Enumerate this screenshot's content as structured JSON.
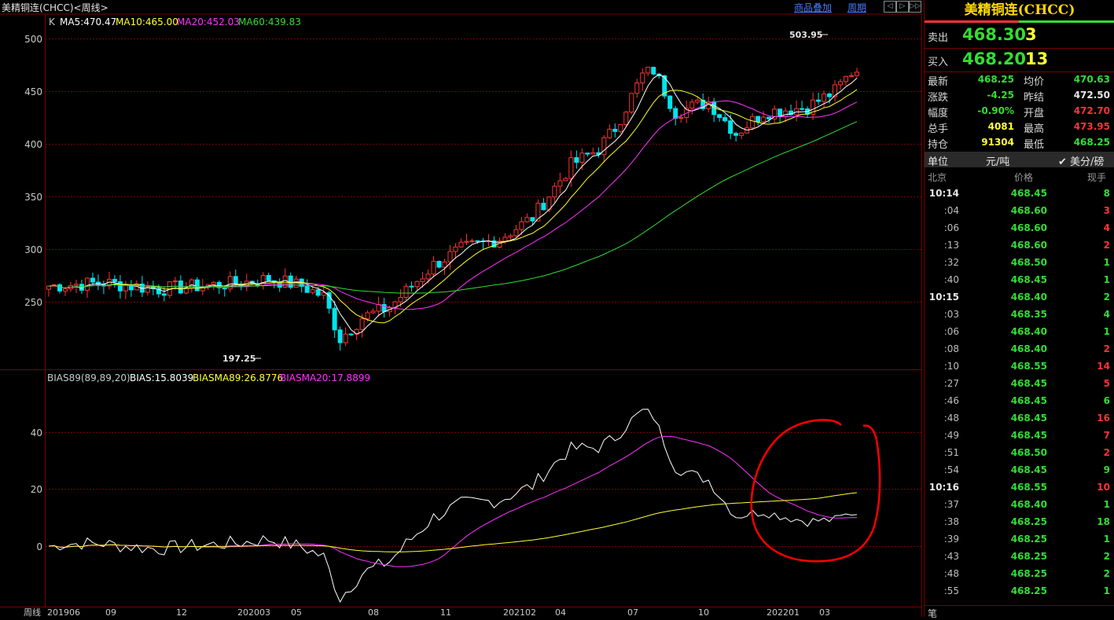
{
  "header": {
    "title": "美精铜连(CHCC)<周线>",
    "link_overlay": "商品叠加",
    "link_period": "周期",
    "nav_buttons": [
      "◁",
      "▷",
      "▷▷"
    ]
  },
  "main_chart": {
    "indicator_prefix": "K",
    "ma": [
      {
        "label": "MA5:470.47",
        "color": "#ffffff"
      },
      {
        "label": "MA10:465.00",
        "color": "#ffff33"
      },
      {
        "label": "MA20:452.03",
        "color": "#ff33ff"
      },
      {
        "label": "MA60:439.83",
        "color": "#33dd33"
      }
    ],
    "y_ticks": [
      "500",
      "450",
      "400",
      "350",
      "300",
      "250"
    ],
    "high_marker": "503.95",
    "low_marker": "197.25"
  },
  "sub_chart": {
    "indicator_name": "BIAS89(89,89,20)",
    "bias": {
      "label": "BIAS:15.8039",
      "color": "#ffffff"
    },
    "biasma89": {
      "label": "BIASMA89:26.8776",
      "color": "#ffff33"
    },
    "biasma20": {
      "label": "BIASMA20:17.8899",
      "color": "#ff33ff"
    },
    "y_ticks": [
      "40",
      "20",
      "0"
    ]
  },
  "x_axis": {
    "label": "周线",
    "ticks": [
      "201906",
      "09",
      "12",
      "202003",
      "05",
      "08",
      "11",
      "202102",
      "04",
      "07",
      "10",
      "202201",
      "03"
    ]
  },
  "colors": {
    "up": "#ff3333",
    "down": "#00e5ee",
    "grid": "#7a0000",
    "annotation": "#ff0000"
  },
  "chart_data": [
    {
      "type": "candlestick",
      "title": "美精铜连(CHCC)<周线>",
      "ylim": [
        197.25,
        503.95
      ],
      "series": [
        {
          "name": "MA5",
          "values": [
            470.47
          ]
        },
        {
          "name": "MA10",
          "values": [
            465.0
          ]
        },
        {
          "name": "MA20",
          "values": [
            452.03
          ]
        },
        {
          "name": "MA60",
          "values": [
            439.83
          ]
        }
      ],
      "annotations": [
        "503.95",
        "197.25"
      ]
    },
    {
      "type": "line",
      "title": "BIAS89(89,89,20)",
      "series": [
        {
          "name": "BIAS",
          "values": [
            15.8039
          ]
        },
        {
          "name": "BIASMA89",
          "values": [
            26.8776
          ]
        },
        {
          "name": "BIASMA20",
          "values": [
            17.8899
          ]
        }
      ]
    }
  ],
  "quote_panel": {
    "title": "美精铜连(CHCC)",
    "sell": {
      "label": "卖出",
      "price": "468.30",
      "volume": "3"
    },
    "buy": {
      "label": "买入",
      "price": "468.20",
      "volume": "13"
    },
    "stats": [
      {
        "l1": "最新",
        "v1": "468.25",
        "c1": "#33dd33",
        "l2": "均价",
        "v2": "470.63",
        "c2": "#33dd33"
      },
      {
        "l1": "涨跌",
        "v1": "-4.25",
        "c1": "#33dd33",
        "l2": "昨结",
        "v2": "472.50",
        "c2": "#e6e6e6"
      },
      {
        "l1": "幅度",
        "v1": "-0.90%",
        "c1": "#33dd33",
        "l2": "开盘",
        "v2": "472.70",
        "c2": "#ff3333"
      },
      {
        "l1": "总手",
        "v1": "4081",
        "c1": "#ffff33",
        "l2": "最高",
        "v2": "473.95",
        "c2": "#ff3333"
      },
      {
        "l1": "持仓",
        "v1": "91304",
        "c1": "#ffff33",
        "l2": "最低",
        "v2": "468.25",
        "c2": "#33dd33"
      }
    ],
    "unit_label": "单位",
    "unit_value": "元/吨",
    "unit_alt": "✔ 美分/磅",
    "tick_header": {
      "time": "北京",
      "price": "价格",
      "volume": "现手"
    },
    "ticks": [
      {
        "t": "10:14",
        "p": "468.45",
        "v": "8",
        "vc": "#33dd33",
        "major": true
      },
      {
        "t": ":04",
        "p": "468.60",
        "v": "3",
        "vc": "#ff3333",
        "major": false
      },
      {
        "t": ":06",
        "p": "468.60",
        "v": "4",
        "vc": "#ff3333",
        "major": false
      },
      {
        "t": ":13",
        "p": "468.60",
        "v": "2",
        "vc": "#ff3333",
        "major": false
      },
      {
        "t": ":32",
        "p": "468.50",
        "v": "1",
        "vc": "#33dd33",
        "major": false
      },
      {
        "t": ":40",
        "p": "468.45",
        "v": "1",
        "vc": "#33dd33",
        "major": false
      },
      {
        "t": "10:15",
        "p": "468.40",
        "v": "2",
        "vc": "#33dd33",
        "major": true
      },
      {
        "t": ":03",
        "p": "468.35",
        "v": "4",
        "vc": "#33dd33",
        "major": false
      },
      {
        "t": ":06",
        "p": "468.40",
        "v": "1",
        "vc": "#33dd33",
        "major": false
      },
      {
        "t": ":08",
        "p": "468.40",
        "v": "2",
        "vc": "#ff3333",
        "major": false
      },
      {
        "t": ":10",
        "p": "468.55",
        "v": "14",
        "vc": "#ff3333",
        "major": false
      },
      {
        "t": ":27",
        "p": "468.45",
        "v": "5",
        "vc": "#ff3333",
        "major": false
      },
      {
        "t": ":46",
        "p": "468.45",
        "v": "6",
        "vc": "#33dd33",
        "major": false
      },
      {
        "t": ":48",
        "p": "468.45",
        "v": "16",
        "vc": "#ff3333",
        "major": false
      },
      {
        "t": ":49",
        "p": "468.45",
        "v": "7",
        "vc": "#ff3333",
        "major": false
      },
      {
        "t": ":51",
        "p": "468.50",
        "v": "2",
        "vc": "#ff3333",
        "major": false
      },
      {
        "t": ":54",
        "p": "468.45",
        "v": "9",
        "vc": "#33dd33",
        "major": false
      },
      {
        "t": "10:16",
        "p": "468.55",
        "v": "10",
        "vc": "#ff3333",
        "major": true
      },
      {
        "t": ":37",
        "p": "468.40",
        "v": "1",
        "vc": "#33dd33",
        "major": false
      },
      {
        "t": ":38",
        "p": "468.25",
        "v": "18",
        "vc": "#33dd33",
        "major": false
      },
      {
        "t": ":39",
        "p": "468.25",
        "v": "1",
        "vc": "#33dd33",
        "major": false
      },
      {
        "t": ":43",
        "p": "468.25",
        "v": "2",
        "vc": "#33dd33",
        "major": false
      },
      {
        "t": ":48",
        "p": "468.25",
        "v": "2",
        "vc": "#33dd33",
        "major": false
      },
      {
        "t": ":55",
        "p": "468.25",
        "v": "1",
        "vc": "#33dd33",
        "major": false
      }
    ],
    "bottom_glyph": "笔"
  }
}
